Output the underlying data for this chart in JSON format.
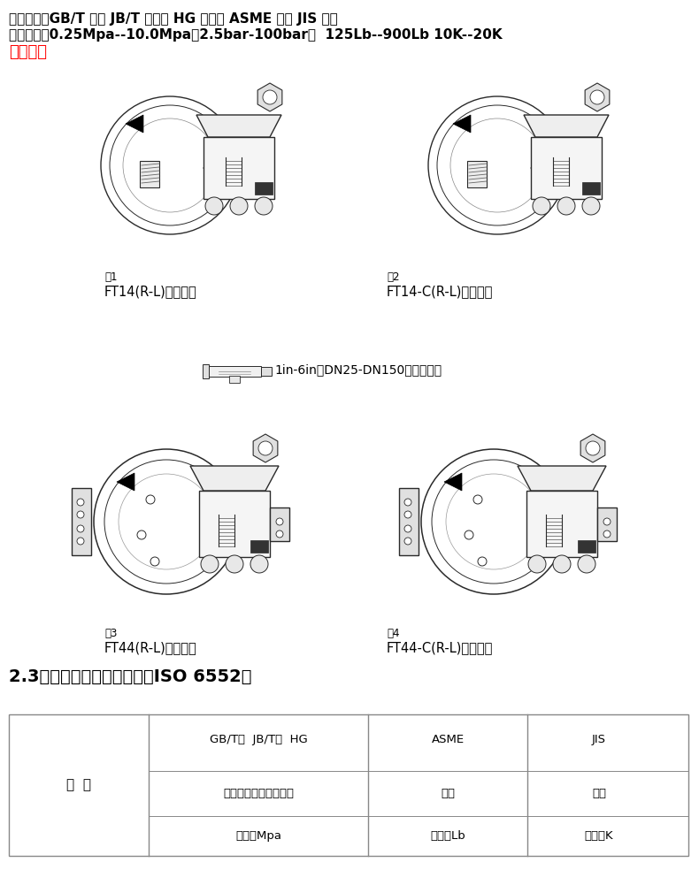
{
  "line1": "法兰连接：GB/T 国标 JB/T 机械部 HG 化工部 ASME 美标 JIS 日标",
  "line2": "压力范围：0.25Mpa--10.0Mpa（2.5bar-100bar）  125Lb--900Lb 10K--20K",
  "line3": "默认国标",
  "fig1_label": "图1",
  "fig1_caption": "FT14(R-L)螺纹连接",
  "fig2_label": "图2",
  "fig2_caption": "FT14-C(R-L)螺纹连接",
  "fig3_label": "图3",
  "fig3_caption": "FT44(R-L)法兰连接",
  "fig4_label": "图4",
  "fig4_caption": "FT44-C(R-L)法兰连接",
  "middle_caption": "1in-6in（DN25-DN150）主阀主件",
  "section_title": "2.3、限制条件（执行标准：ISO 6552）",
  "table_col1_row1": "项  目",
  "table_col2_row1a": "GB/T、  JB/T、  HG",
  "table_col2_row1b": "国标、机械部、化工部",
  "table_col2_row1c": "单位：Mpa",
  "table_col3_row1a": "ASME",
  "table_col3_row1b": "美标",
  "table_col3_row1c": "单位：Lb",
  "table_col4_row1a": "JIS",
  "table_col4_row1b": "日标",
  "table_col4_row1c": "单位：K",
  "bg_color": "#ffffff",
  "text_color": "#000000",
  "red_color": "#ff0000",
  "table_line_color": "#888888",
  "draw_color": "#2a2a2a",
  "light_gray": "#d8d8d8",
  "mid_gray": "#aaaaaa"
}
